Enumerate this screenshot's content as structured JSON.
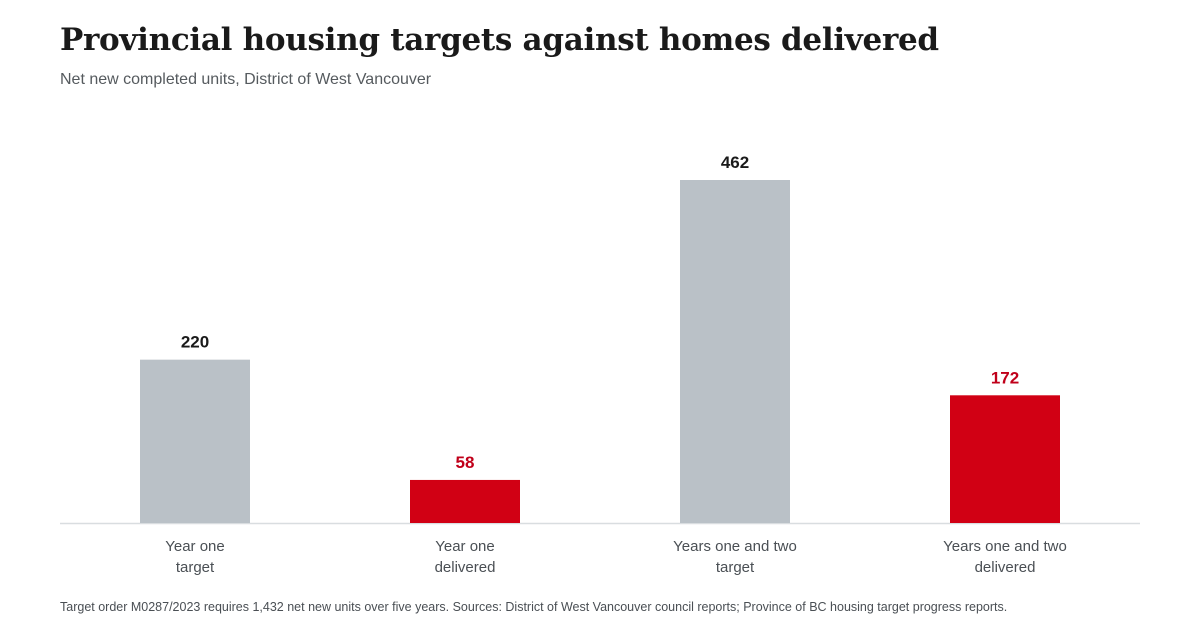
{
  "title": "Provincial housing targets against homes delivered",
  "subtitle": "Net new completed units, District of West Vancouver",
  "footnote": "Target order M0287/2023 requires 1,432 net new units over five years. Sources: District of West Vancouver council reports; Province of BC housing target progress reports.",
  "colors": {
    "target": "#bac1c7",
    "delivered": "#d10014",
    "target_label": "#1a1a1a",
    "delivered_label": "#c0001a",
    "baseline": "#d9dde0"
  },
  "chart_data": {
    "type": "bar",
    "title": "Provincial housing targets against homes delivered",
    "subtitle": "Net new completed units, District of West Vancouver",
    "categories": [
      {
        "line1": "Year one",
        "line2": "target"
      },
      {
        "line1": "Year one",
        "line2": "delivered"
      },
      {
        "line1": "Years one and two",
        "line2": "target"
      },
      {
        "line1": "Years one and two",
        "line2": "delivered"
      }
    ],
    "values": [
      220,
      58,
      462,
      172
    ],
    "value_labels": [
      "220",
      "58",
      "462",
      "172"
    ],
    "kinds": [
      "target",
      "delivered",
      "target",
      "delivered"
    ],
    "ylim": [
      0,
      480
    ],
    "grid": false,
    "legend": "none",
    "xlabel": "",
    "ylabel": ""
  }
}
